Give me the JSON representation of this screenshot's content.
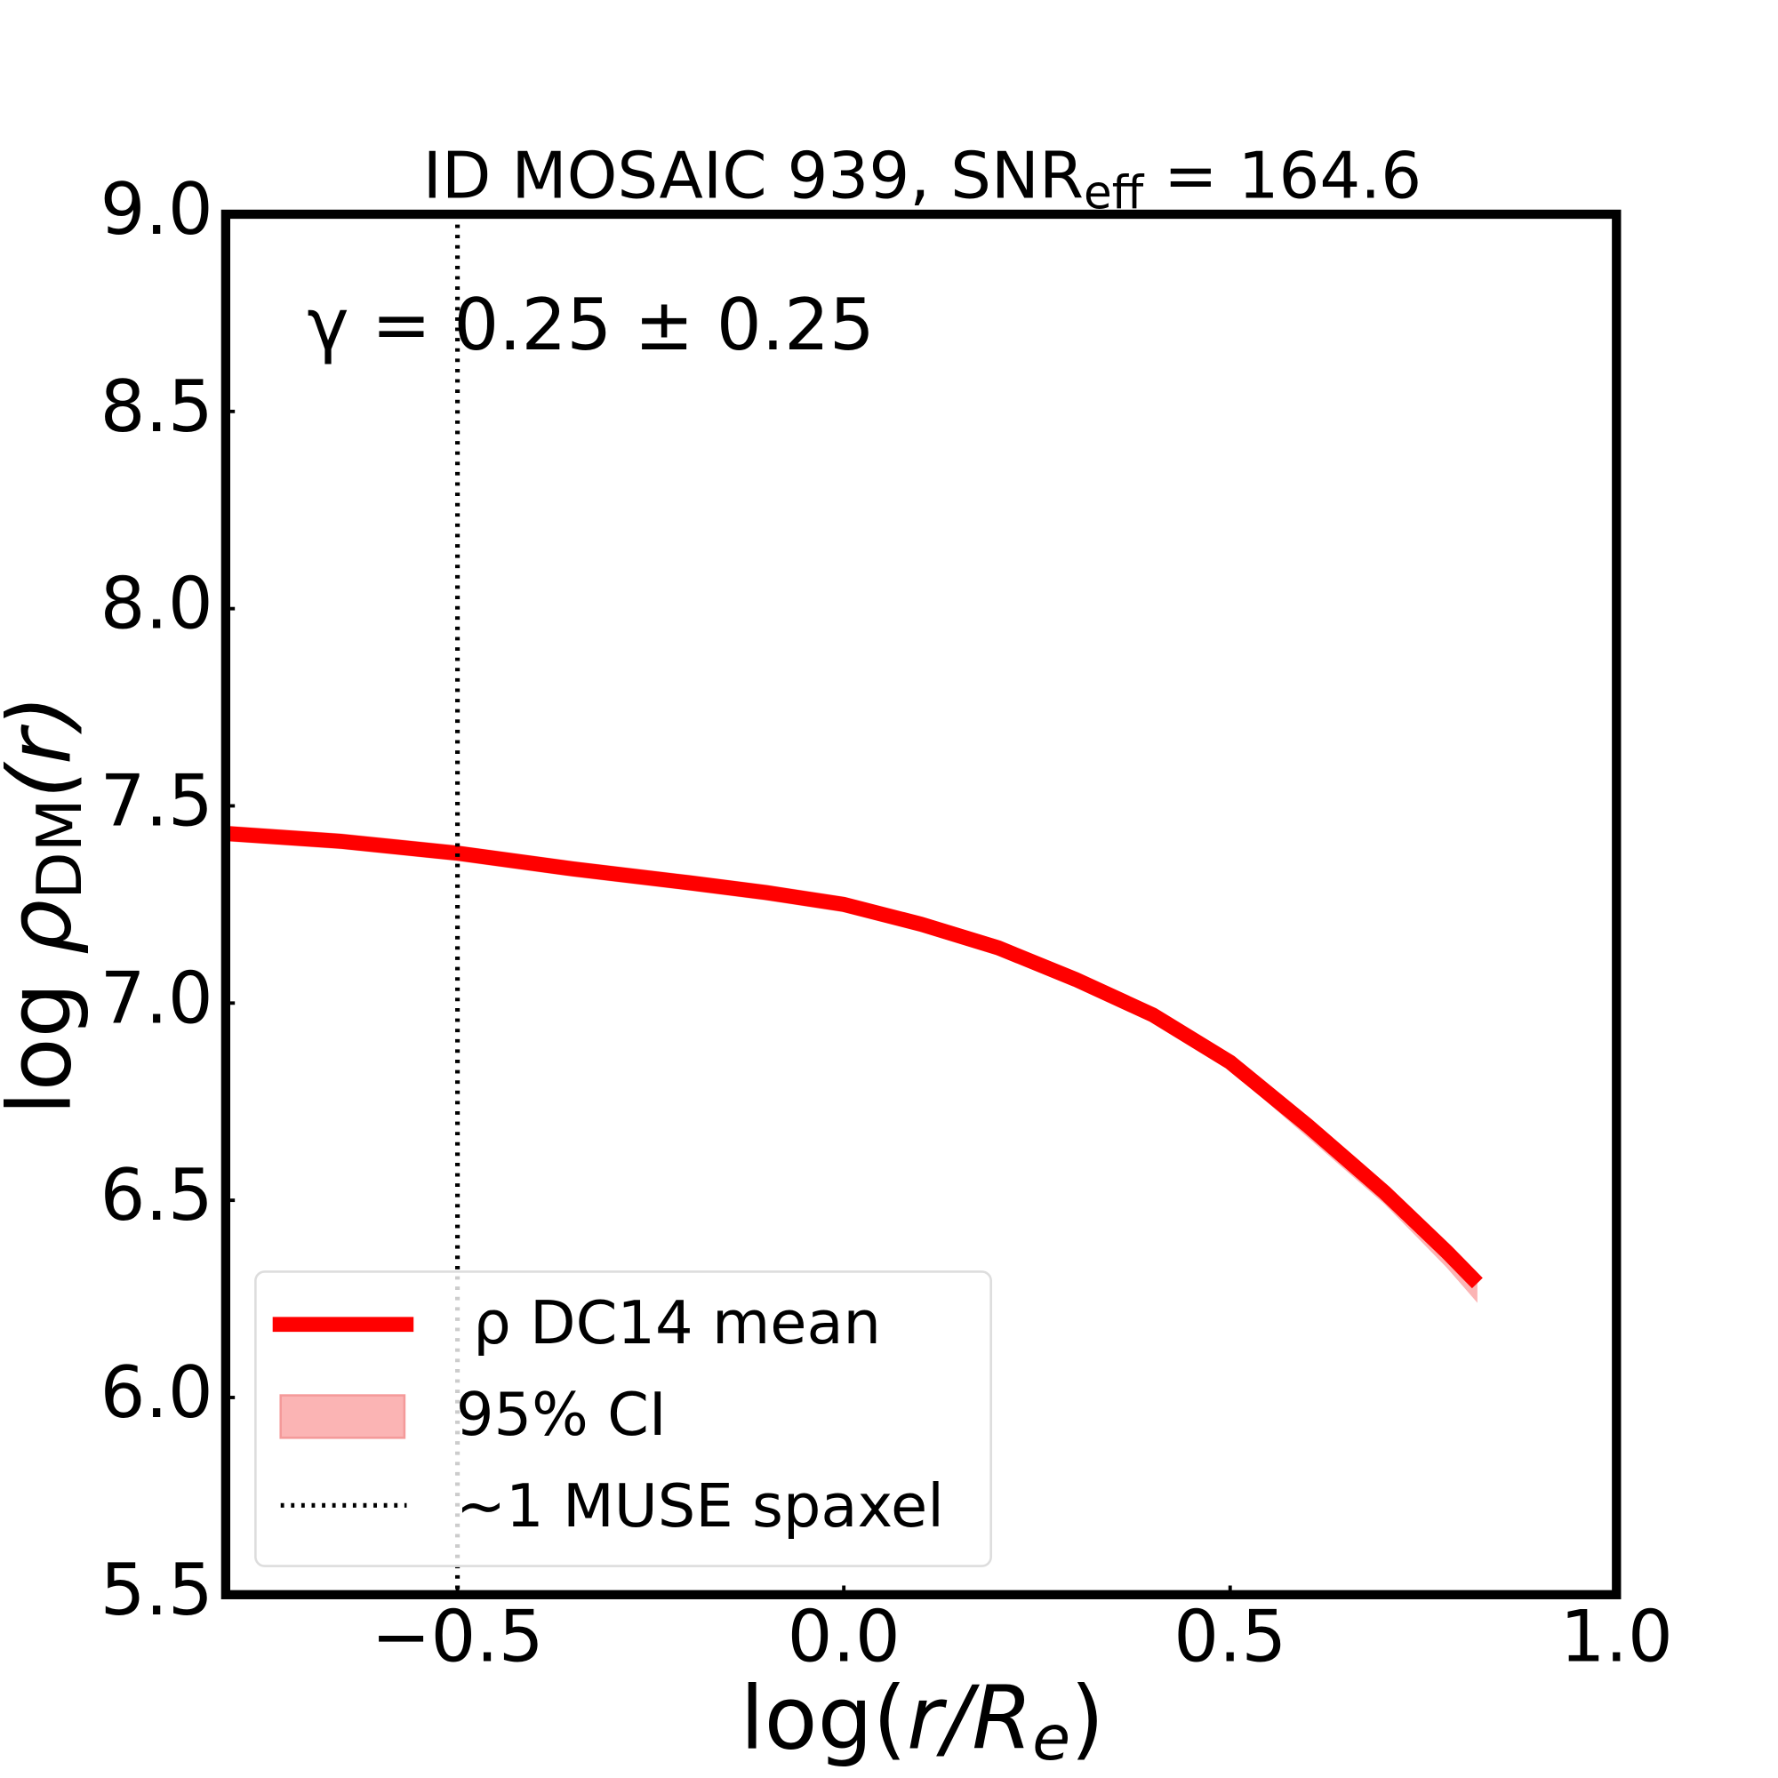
{
  "chart_data": {
    "type": "line",
    "title": [
      "ID MOSAIC 939, SNR",
      "eff",
      " = 164.6"
    ],
    "xlabel": [
      "log(",
      "r/R",
      "e",
      ")"
    ],
    "ylabel": [
      "log ",
      "ρ",
      "DM",
      "(r)"
    ],
    "annotation": "γ = 0.25 ± 0.25",
    "x": [
      -0.8,
      -0.65,
      -0.5,
      -0.35,
      -0.2,
      -0.1,
      0.0,
      0.1,
      0.2,
      0.3,
      0.4,
      0.5,
      0.6,
      0.7,
      0.78,
      0.82
    ],
    "series": [
      {
        "name": "ρ DC14 mean",
        "color": "#ff0000",
        "values": [
          7.43,
          7.41,
          7.38,
          7.34,
          7.305,
          7.28,
          7.25,
          7.2,
          7.14,
          7.06,
          6.97,
          6.85,
          6.69,
          6.52,
          6.37,
          6.29
        ]
      }
    ],
    "ci": {
      "name": "95% CI",
      "color": "#fbb4b4",
      "lower": [
        7.41,
        7.39,
        7.36,
        7.32,
        7.285,
        7.26,
        7.23,
        7.18,
        7.12,
        7.04,
        6.95,
        6.83,
        6.66,
        6.49,
        6.33,
        6.24
      ],
      "upper": [
        7.45,
        7.43,
        7.4,
        7.36,
        7.325,
        7.3,
        7.27,
        7.22,
        7.16,
        7.08,
        6.99,
        6.87,
        6.71,
        6.54,
        6.39,
        6.31
      ]
    },
    "vline": {
      "name": "∼1 MUSE spaxel",
      "x": -0.5,
      "color": "#000000"
    },
    "xlim": [
      -0.8,
      1.0
    ],
    "ylim": [
      5.5,
      9.0
    ],
    "xticks": [
      {
        "value": -0.5,
        "label": "−0.5"
      },
      {
        "value": 0,
        "label": "0.0"
      },
      0.5,
      {
        "value": 1,
        "label": "1.0"
      }
    ],
    "yticks": [
      5.5,
      {
        "value": 6,
        "label": "6.0"
      },
      6.5,
      {
        "value": 7,
        "label": "7.0"
      },
      7.5,
      {
        "value": 8,
        "label": "8.0"
      },
      8.5,
      {
        "value": 9,
        "label": "9.0"
      }
    ],
    "legend": "lower left"
  }
}
